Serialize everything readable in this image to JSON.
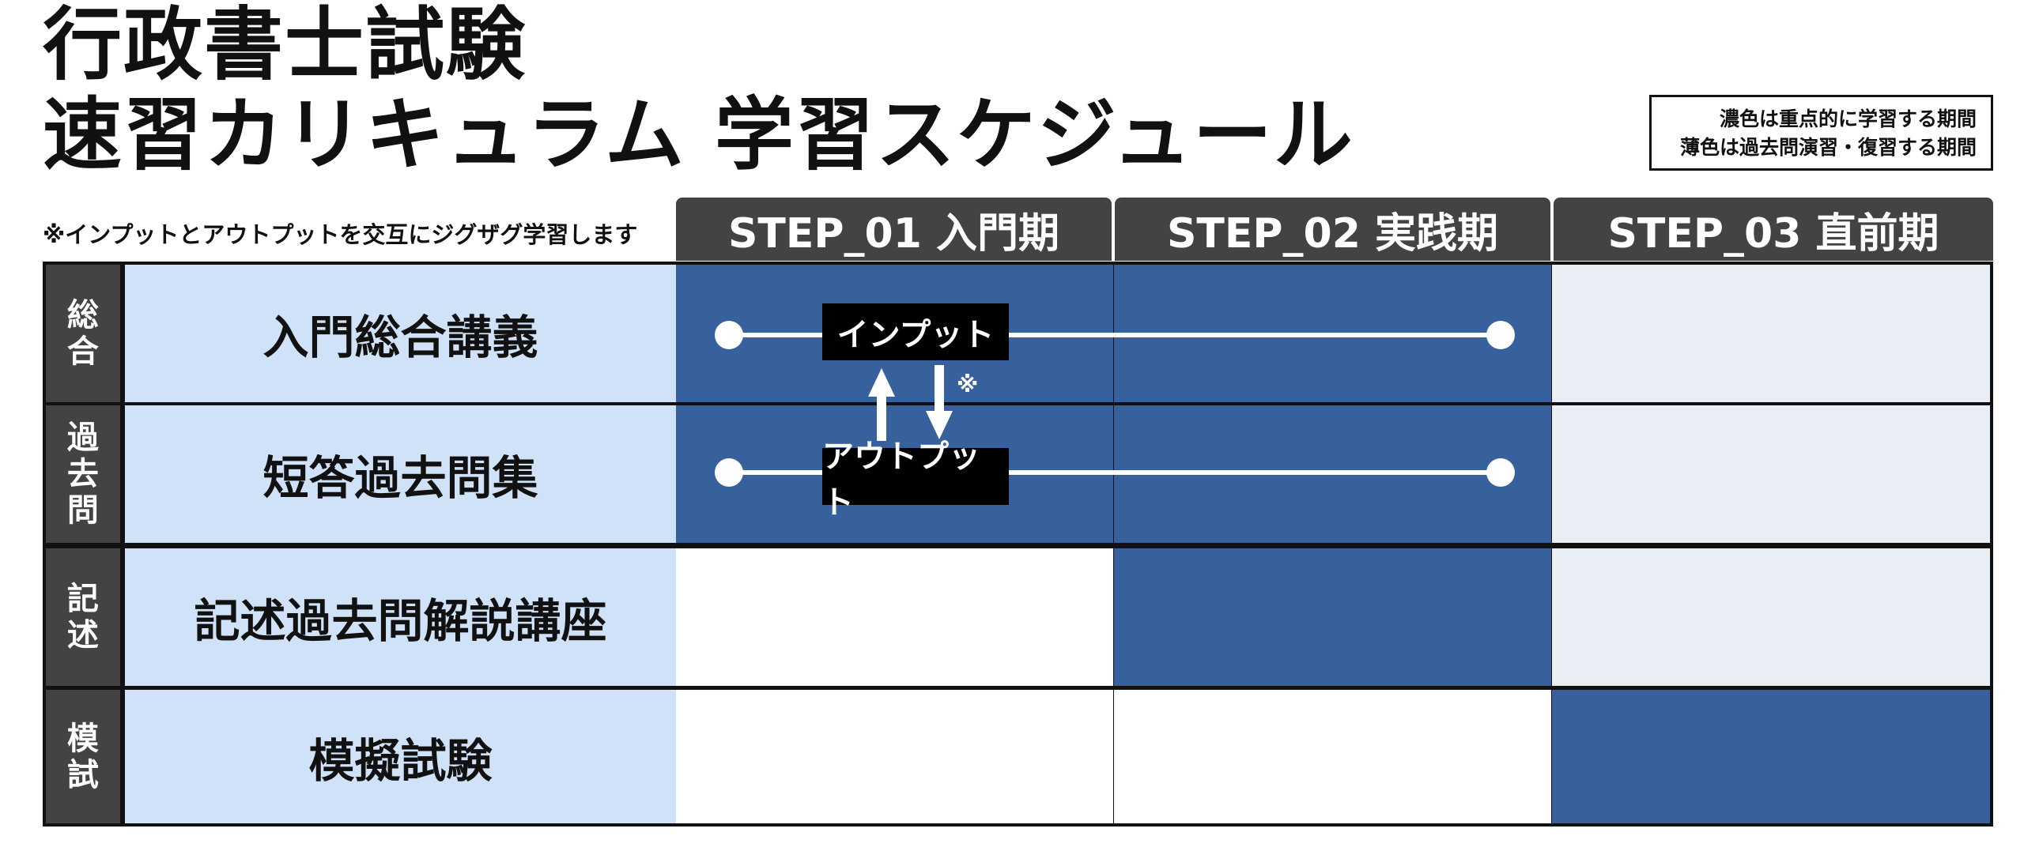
{
  "title": {
    "line1": "行政書士試験",
    "line2": "速習カリキュラム 学習スケジュール"
  },
  "legend": {
    "line1": "濃色は重点的に学習する期間",
    "line2": "薄色は過去問演習・復習する期間"
  },
  "note": "※インプットとアウトプットを交互にジグザグ学習します",
  "steps": [
    {
      "label": "STEP_01 入門期"
    },
    {
      "label": "STEP_02 実践期"
    },
    {
      "label": "STEP_03 直前期"
    }
  ],
  "rows": [
    {
      "category": "総合",
      "name": "入門総合講義",
      "cells": [
        "dark",
        "dark",
        "light"
      ]
    },
    {
      "category": "過去問",
      "name": "短答過去問集",
      "cells": [
        "dark",
        "dark",
        "light"
      ]
    },
    {
      "category": "記述",
      "name": "記述過去問解説講座",
      "cells": [
        "empty",
        "dark",
        "light"
      ]
    },
    {
      "category": "模試",
      "name": "模擬試験",
      "cells": [
        "empty",
        "empty",
        "dark"
      ]
    }
  ],
  "flow": {
    "input_label": "インプット",
    "output_label": "アウトプット",
    "mark": "※"
  },
  "colors": {
    "dark": "#36619c",
    "light": "#e9edf4",
    "name_bg": "#cfe2f8",
    "header_bg": "#434343"
  }
}
